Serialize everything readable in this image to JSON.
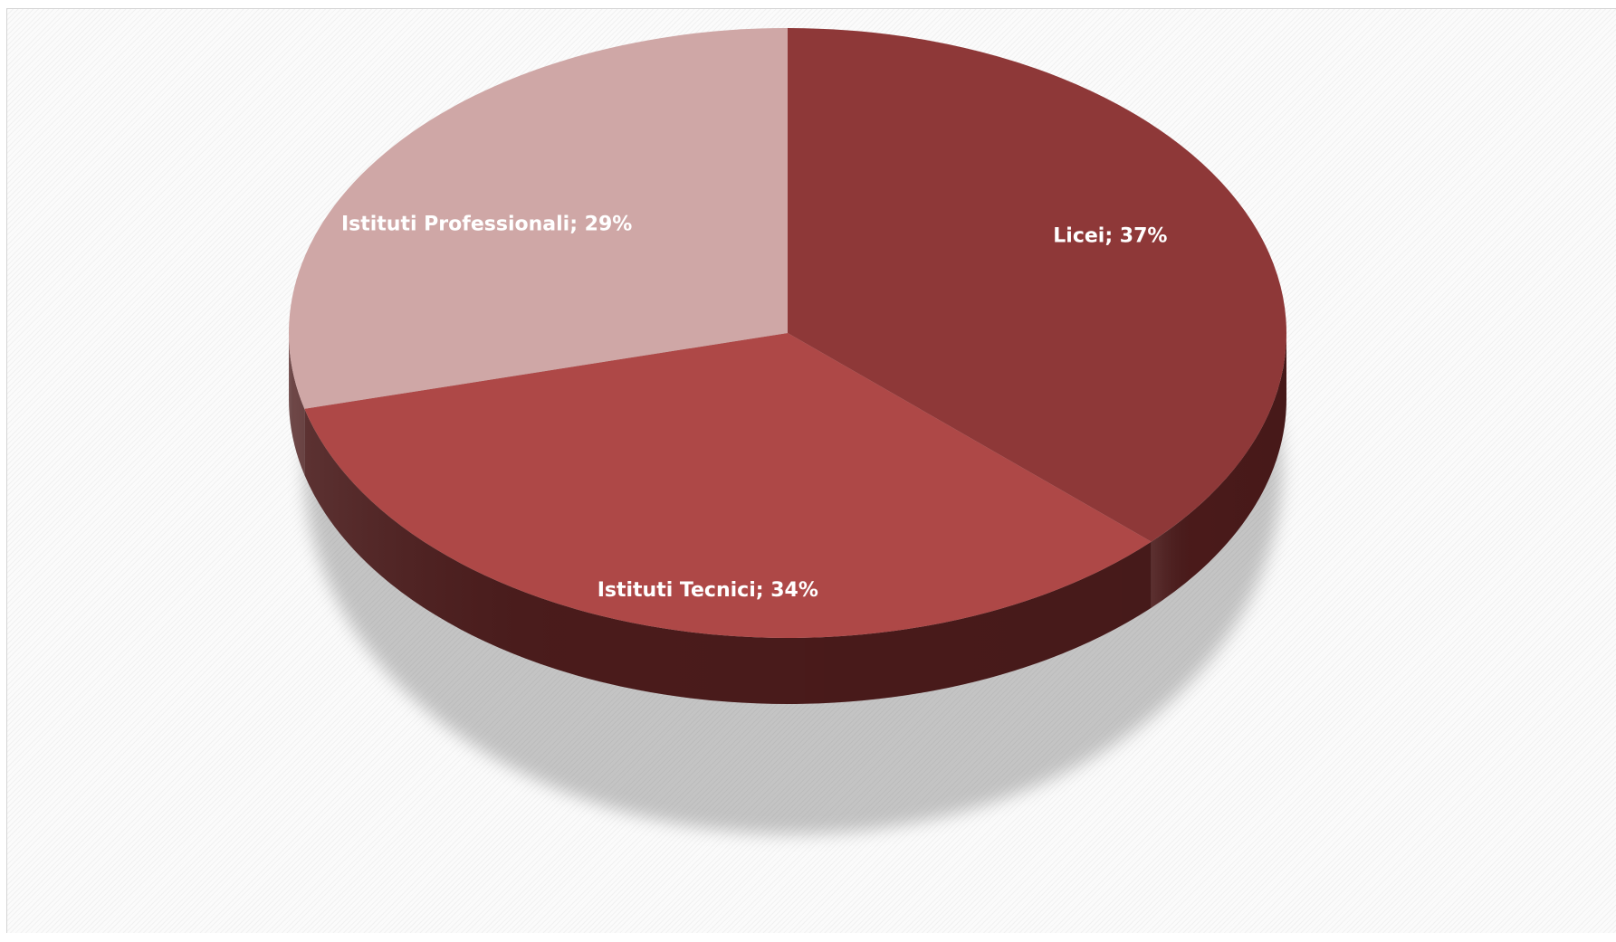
{
  "chart_data": {
    "type": "pie",
    "style": "3d",
    "categories": [
      "Licei",
      "Istituti Tecnici",
      "Istituti Professionali"
    ],
    "values": [
      37,
      34,
      29
    ],
    "unit": "%",
    "data_labels": [
      "Licei; 37%",
      "Istituti Tecnici; 34%",
      "Istituti Professionali; 29%"
    ],
    "colors": [
      "#8e3838",
      "#ae4847",
      "#cfa7a6"
    ],
    "side_colors": [
      "#4a1a1a",
      "#4a1b1b",
      "#6e4646"
    ],
    "start_angle_deg": 0,
    "direction": "clockwise",
    "legend": "none"
  }
}
